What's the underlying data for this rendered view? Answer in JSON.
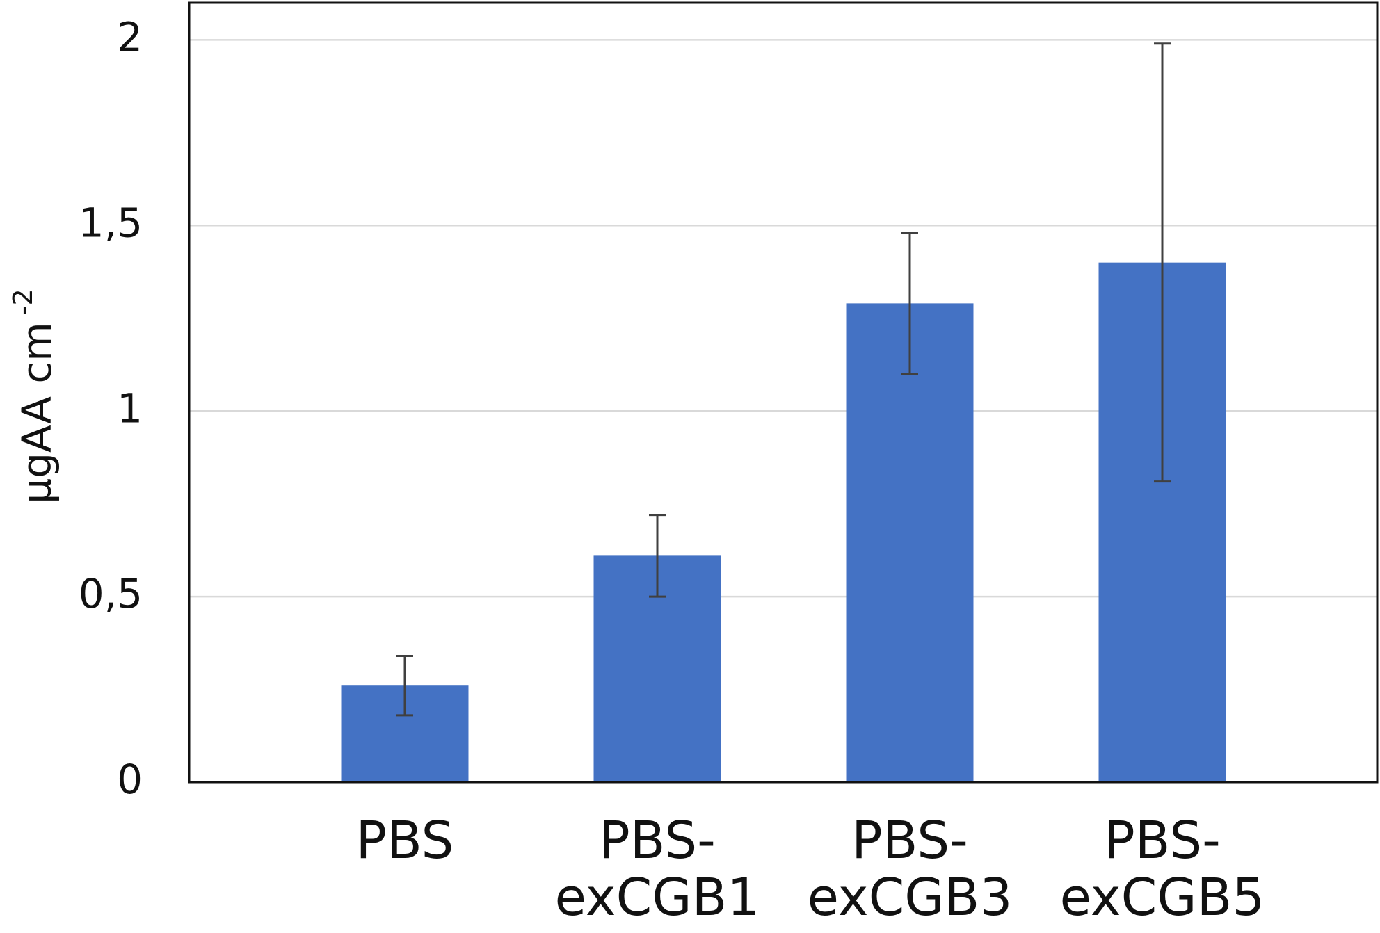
{
  "chart_data": {
    "type": "bar",
    "y_label": "µgAA cm",
    "y_label_superscript": "-2",
    "categories": [
      "PBS",
      "PBS-exCGB1",
      "PBS-exCGB3",
      "PBS-exCGB5"
    ],
    "values": [
      0.26,
      0.61,
      1.29,
      1.4
    ],
    "errors": [
      0.08,
      0.11,
      0.19,
      0.59
    ],
    "color": "#4472c4",
    "error_color": "#404040",
    "ylim": [
      0,
      2.1
    ],
    "yticks": [
      0,
      {
        "value": 0.5,
        "label": "0,5"
      },
      1,
      {
        "value": 1.5,
        "label": "1,5"
      },
      2
    ],
    "grid": true
  }
}
